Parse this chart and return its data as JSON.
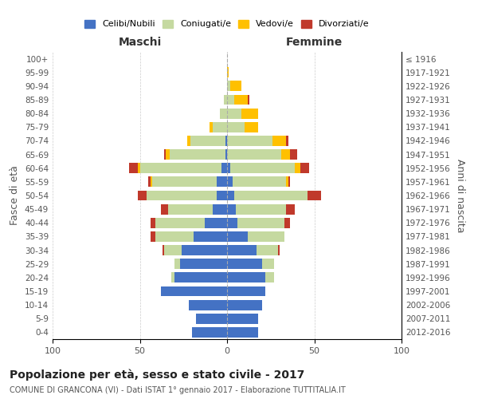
{
  "age_groups": [
    "0-4",
    "5-9",
    "10-14",
    "15-19",
    "20-24",
    "25-29",
    "30-34",
    "35-39",
    "40-44",
    "45-49",
    "50-54",
    "55-59",
    "60-64",
    "65-69",
    "70-74",
    "75-79",
    "80-84",
    "85-89",
    "90-94",
    "95-99",
    "100+"
  ],
  "birth_years": [
    "2012-2016",
    "2007-2011",
    "2002-2006",
    "1997-2001",
    "1992-1996",
    "1987-1991",
    "1982-1986",
    "1977-1981",
    "1972-1976",
    "1967-1971",
    "1962-1966",
    "1957-1961",
    "1952-1956",
    "1947-1951",
    "1942-1946",
    "1937-1941",
    "1932-1936",
    "1927-1931",
    "1922-1926",
    "1917-1921",
    "≤ 1916"
  ],
  "males": {
    "celibi": [
      20,
      18,
      22,
      38,
      30,
      27,
      26,
      19,
      13,
      8,
      6,
      6,
      3,
      1,
      1,
      0,
      0,
      0,
      0,
      0,
      0
    ],
    "coniugati": [
      0,
      0,
      0,
      0,
      2,
      3,
      10,
      22,
      28,
      26,
      40,
      37,
      47,
      32,
      20,
      8,
      4,
      2,
      0,
      0,
      0
    ],
    "vedovi": [
      0,
      0,
      0,
      0,
      0,
      0,
      0,
      0,
      0,
      0,
      0,
      1,
      1,
      2,
      2,
      2,
      0,
      0,
      0,
      0,
      0
    ],
    "divorziati": [
      0,
      0,
      0,
      0,
      0,
      0,
      1,
      3,
      3,
      4,
      5,
      1,
      5,
      1,
      0,
      0,
      0,
      0,
      0,
      0,
      0
    ]
  },
  "females": {
    "nubili": [
      18,
      18,
      20,
      22,
      22,
      20,
      17,
      12,
      6,
      5,
      4,
      3,
      2,
      0,
      0,
      0,
      0,
      0,
      0,
      0,
      0
    ],
    "coniugate": [
      0,
      0,
      0,
      0,
      5,
      7,
      12,
      21,
      27,
      29,
      42,
      31,
      37,
      31,
      26,
      10,
      8,
      4,
      2,
      0,
      0
    ],
    "vedove": [
      0,
      0,
      0,
      0,
      0,
      0,
      0,
      0,
      0,
      0,
      0,
      1,
      3,
      5,
      8,
      8,
      10,
      8,
      6,
      1,
      0
    ],
    "divorziate": [
      0,
      0,
      0,
      0,
      0,
      0,
      1,
      0,
      3,
      5,
      8,
      1,
      5,
      4,
      1,
      0,
      0,
      1,
      0,
      0,
      0
    ]
  },
  "color_celibi": "#4472c4",
  "color_coniugati": "#c5d9a0",
  "color_vedovi": "#ffc000",
  "color_divorziati": "#c0392b",
  "title": "Popolazione per età, sesso e stato civile - 2017",
  "subtitle": "COMUNE DI GRANCONA (VI) - Dati ISTAT 1° gennaio 2017 - Elaborazione TUTTITALIA.IT",
  "xlabel_left": "Maschi",
  "xlabel_right": "Femmine",
  "ylabel_left": "Fasce di età",
  "ylabel_right": "Anni di nascita",
  "xlim": 100,
  "background_color": "#ffffff",
  "grid_color": "#cccccc"
}
